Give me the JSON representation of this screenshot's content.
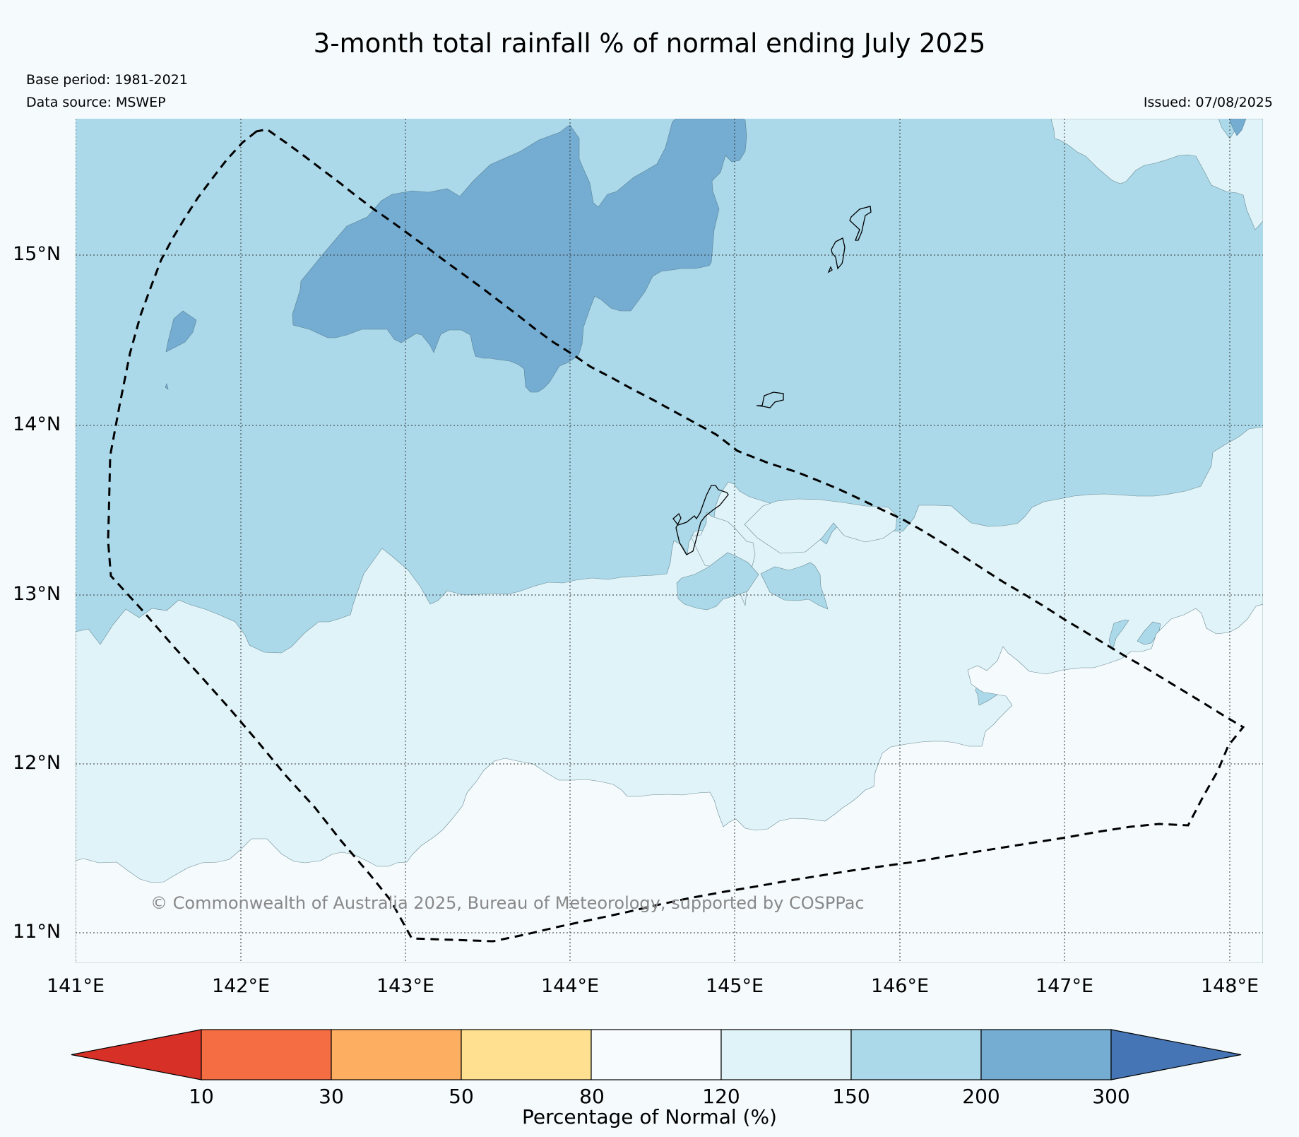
{
  "title": "3-month total rainfall % of normal ending July 2025",
  "base_period": "Base period: 1981-2021",
  "data_source": "Data source: MSWEP",
  "issued": "Issued: 07/08/2025",
  "copyright": "© Commonwealth of Australia 2025, Bureau of Meteorology, supported by COSPPac",
  "lat_labels": [
    "15°N",
    "14°N",
    "13°N",
    "12°N",
    "11°N"
  ],
  "lon_labels": [
    "141°E",
    "142°E",
    "143°E",
    "144°E",
    "145°E",
    "146°E",
    "147°E",
    "148°E"
  ],
  "colorbar": {
    "title": "Percentage of Normal (%)",
    "ticks": [
      "10",
      "30",
      "50",
      "80",
      "120",
      "150",
      "200",
      "300"
    ],
    "colors": [
      "#d73027",
      "#f46d43",
      "#fdae61",
      "#fee090",
      "#f7fbfd",
      "#e0f3f8",
      "#abd9e9",
      "#74add1",
      "#4575b4"
    ]
  },
  "map_colors": {
    "background": "#f5fbfd",
    "class_80_120": "#f5fbfd",
    "class_120_150": "#e0f3f8",
    "class_150_200": "#abd9e9",
    "class_200_300": "#74add1"
  }
}
